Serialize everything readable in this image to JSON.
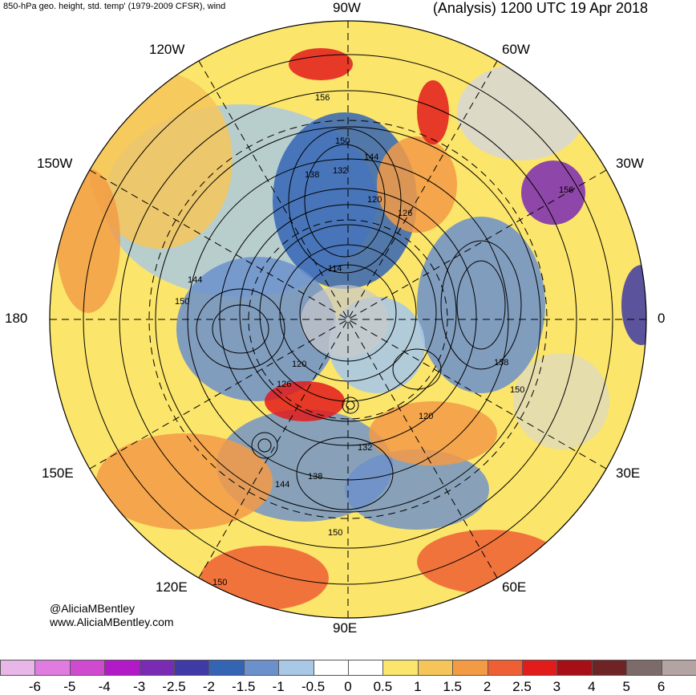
{
  "header": {
    "left_title": "850-hPa geo. height, std. temp' (1979-2009 CFSR), wind",
    "right_title": "(Analysis) 1200 UTC 19 Apr 2018"
  },
  "longitude_labels": {
    "w90": "90W",
    "w60": "60W",
    "w120": "120W",
    "w150": "150W",
    "w30": "30W",
    "e180": "180",
    "e0": "0",
    "e150": "150E",
    "e30": "30E",
    "e120": "120E",
    "e60": "60E",
    "e90": "90E"
  },
  "contour_labels": [
    "156",
    "150",
    "144",
    "138",
    "132",
    "120",
    "126",
    "114",
    "144",
    "150",
    "138",
    "150",
    "126",
    "120",
    "120",
    "132",
    "138",
    "144",
    "150",
    "150",
    "156"
  ],
  "credit": {
    "handle": "@AliciaMBentley",
    "website": "www.AliciaMBentley.com"
  },
  "colorbar": {
    "colors": [
      "#e8b7e8",
      "#e07ce0",
      "#d04ad0",
      "#b21ac8",
      "#7a2bb3",
      "#3f3aa6",
      "#3465b5",
      "#6b90cc",
      "#a8c8e6",
      "#ffffff",
      "#ffffff",
      "#fbe56b",
      "#f5c55a",
      "#f39a45",
      "#ee5f34",
      "#e21b1b",
      "#a50f15",
      "#6e2424",
      "#7d6b6b",
      "#b3a3a3"
    ],
    "ticks": [
      "-6",
      "-5",
      "-4",
      "-3",
      "-2.5",
      "-2",
      "-1.5",
      "-1",
      "-0.5",
      "0",
      "0.5",
      "1",
      "1.5",
      "2",
      "2.5",
      "3",
      "4",
      "5",
      "6"
    ]
  }
}
